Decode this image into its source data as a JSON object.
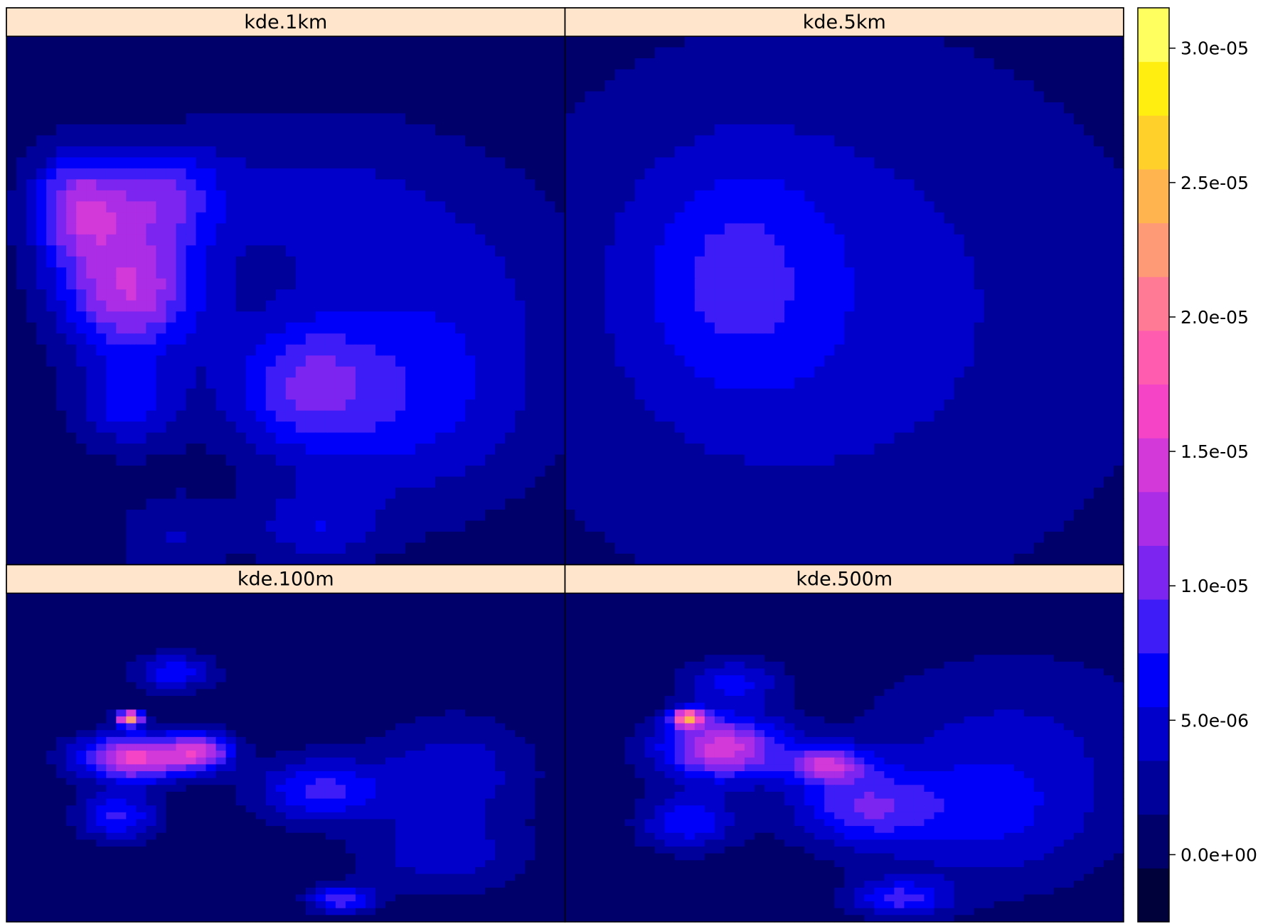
{
  "chart_data": {
    "type": "heatmap",
    "title": "",
    "layout": {
      "columns": 2,
      "rows": 2
    },
    "panels": [
      {
        "name": "kde.1km",
        "blobs": [
          {
            "x": 0.22,
            "y": 0.48,
            "amp": 1.3e-05,
            "sx": 0.09,
            "sy": 0.09
          },
          {
            "x": 0.13,
            "y": 0.32,
            "amp": 1.1e-05,
            "sx": 0.06,
            "sy": 0.07
          },
          {
            "x": 0.28,
            "y": 0.3,
            "amp": 7e-06,
            "sx": 0.07,
            "sy": 0.06
          },
          {
            "x": 0.53,
            "y": 0.66,
            "amp": 7.5e-06,
            "sx": 0.1,
            "sy": 0.09
          },
          {
            "x": 0.22,
            "y": 0.7,
            "amp": 6e-06,
            "sx": 0.07,
            "sy": 0.06
          },
          {
            "x": 0.72,
            "y": 0.72,
            "amp": 4.5e-06,
            "sx": 0.16,
            "sy": 0.14
          },
          {
            "x": 0.55,
            "y": 0.93,
            "amp": 4.5e-06,
            "sx": 0.08,
            "sy": 0.05
          },
          {
            "x": 0.8,
            "y": 0.5,
            "amp": 3.5e-06,
            "sx": 0.18,
            "sy": 0.18
          },
          {
            "x": 0.5,
            "y": 0.3,
            "amp": 3.5e-06,
            "sx": 0.2,
            "sy": 0.12
          },
          {
            "x": 0.3,
            "y": 0.95,
            "amp": 3.5e-06,
            "sx": 0.07,
            "sy": 0.06
          }
        ]
      },
      {
        "name": "kde.5km",
        "blobs": [
          {
            "x": 0.3,
            "y": 0.45,
            "amp": 4.2e-06,
            "sx": 0.12,
            "sy": 0.15
          },
          {
            "x": 0.43,
            "y": 0.5,
            "amp": 2.6e-06,
            "sx": 0.3,
            "sy": 0.3
          },
          {
            "x": 0.5,
            "y": 0.55,
            "amp": 2.2e-06,
            "sx": 0.55,
            "sy": 0.45
          }
        ]
      },
      {
        "name": "kde.100m",
        "blobs": [
          {
            "x": 0.23,
            "y": 0.5,
            "amp": 1.6e-05,
            "sx": 0.07,
            "sy": 0.05
          },
          {
            "x": 0.22,
            "y": 0.38,
            "amp": 2.4e-05,
            "sx": 0.015,
            "sy": 0.015
          },
          {
            "x": 0.35,
            "y": 0.48,
            "amp": 1.2e-05,
            "sx": 0.04,
            "sy": 0.04
          },
          {
            "x": 0.56,
            "y": 0.6,
            "amp": 8e-06,
            "sx": 0.08,
            "sy": 0.07
          },
          {
            "x": 0.2,
            "y": 0.68,
            "amp": 8e-06,
            "sx": 0.05,
            "sy": 0.05
          },
          {
            "x": 0.6,
            "y": 0.93,
            "amp": 9e-06,
            "sx": 0.04,
            "sy": 0.03
          },
          {
            "x": 0.3,
            "y": 0.24,
            "amp": 7e-06,
            "sx": 0.05,
            "sy": 0.04
          },
          {
            "x": 0.8,
            "y": 0.55,
            "amp": 5e-06,
            "sx": 0.1,
            "sy": 0.12
          },
          {
            "x": 0.78,
            "y": 0.8,
            "amp": 4.5e-06,
            "sx": 0.1,
            "sy": 0.08
          }
        ]
      },
      {
        "name": "kde.500m",
        "blobs": [
          {
            "x": 0.28,
            "y": 0.47,
            "amp": 1.45e-05,
            "sx": 0.08,
            "sy": 0.07
          },
          {
            "x": 0.22,
            "y": 0.38,
            "amp": 1.9e-05,
            "sx": 0.02,
            "sy": 0.02
          },
          {
            "x": 0.47,
            "y": 0.52,
            "amp": 1.1e-05,
            "sx": 0.05,
            "sy": 0.04
          },
          {
            "x": 0.53,
            "y": 0.65,
            "amp": 7.5e-06,
            "sx": 0.09,
            "sy": 0.08
          },
          {
            "x": 0.22,
            "y": 0.7,
            "amp": 7e-06,
            "sx": 0.06,
            "sy": 0.06
          },
          {
            "x": 0.6,
            "y": 0.93,
            "amp": 7.5e-06,
            "sx": 0.06,
            "sy": 0.04
          },
          {
            "x": 0.3,
            "y": 0.27,
            "amp": 6e-06,
            "sx": 0.06,
            "sy": 0.05
          },
          {
            "x": 0.75,
            "y": 0.7,
            "amp": 4.5e-06,
            "sx": 0.15,
            "sy": 0.15
          },
          {
            "x": 0.8,
            "y": 0.45,
            "amp": 3.5e-06,
            "sx": 0.2,
            "sy": 0.2
          }
        ]
      }
    ],
    "colorbar": {
      "breaks": [
        -2.5e-06,
        -5e-07,
        1.5e-06,
        3.5e-06,
        5.5e-06,
        7.5e-06,
        9.5e-06,
        1.15e-05,
        1.35e-05,
        1.55e-05,
        1.75e-05,
        1.95e-05,
        2.15e-05,
        2.35e-05,
        2.55e-05,
        2.75e-05,
        2.95e-05,
        3.15e-05
      ],
      "colors": [
        "#00003a",
        "#00006a",
        "#00009a",
        "#0000ca",
        "#0000fa",
        "#3d1cf7",
        "#7d25f0",
        "#ac2de6",
        "#d338d8",
        "#f545c6",
        "#ff5cb0",
        "#ff7b95",
        "#ff9a77",
        "#ffb450",
        "#ffd02a",
        "#ffee10",
        "#ffff60"
      ],
      "ticks": [
        {
          "value": 0.0,
          "label": "0.0e+00"
        },
        {
          "value": 5e-06,
          "label": "5.0e-06"
        },
        {
          "value": 1e-05,
          "label": "1.0e-05"
        },
        {
          "value": 1.5e-05,
          "label": "1.5e-05"
        },
        {
          "value": 2e-05,
          "label": "2.0e-05"
        },
        {
          "value": 2.5e-05,
          "label": "2.5e-05"
        },
        {
          "value": 3e-05,
          "label": "3.0e-05"
        }
      ]
    }
  }
}
